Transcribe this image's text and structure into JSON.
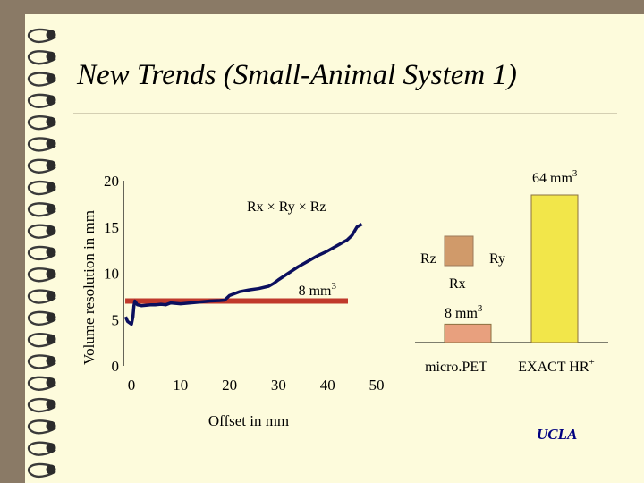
{
  "slide": {
    "title": "New Trends  (Small-Animal System 1)",
    "footer": "UCLA"
  },
  "chart_data": [
    {
      "type": "line",
      "title": "",
      "xlabel": "Offset in mm",
      "ylabel": "Volume resolution in mm",
      "xlim": [
        -2,
        50
      ],
      "ylim": [
        0,
        20
      ],
      "xticks": [
        "0",
        "10",
        "20",
        "30",
        "40",
        "50"
      ],
      "yticks": [
        "0",
        "5",
        "10",
        "15",
        "20"
      ],
      "series": [
        {
          "name": "Rx × Ry × Rz",
          "color": "#0b0f5e",
          "x": [
            -1.2,
            -0.8,
            0,
            0.3,
            0.5,
            0.7,
            1.2,
            2,
            3,
            4,
            5,
            6,
            7,
            8,
            10,
            12,
            14,
            16,
            18,
            19,
            20,
            22,
            24,
            26,
            28,
            29,
            30,
            32,
            34,
            36,
            38,
            40,
            42,
            44,
            45,
            46,
            47
          ],
          "y": [
            5.3,
            4.8,
            4.5,
            5.3,
            6.5,
            7.0,
            6.6,
            6.5,
            6.55,
            6.6,
            6.6,
            6.65,
            6.6,
            6.8,
            6.7,
            6.8,
            6.9,
            7.0,
            7.05,
            7.1,
            7.6,
            8.0,
            8.2,
            8.35,
            8.6,
            8.9,
            9.3,
            10.0,
            10.7,
            11.3,
            11.9,
            12.4,
            13.0,
            13.6,
            14.1,
            15.0,
            15.3
          ]
        },
        {
          "name": "8 mm3",
          "color": "#c0392b",
          "x": [
            -2,
            50
          ],
          "y": [
            7.0,
            7.0
          ]
        }
      ],
      "annotations": {
        "rxryrz": "Rx × Ry × Rz",
        "eight_mm3": "8 mm3"
      }
    },
    {
      "type": "bar",
      "categories": [
        "micro.PET",
        "EXACT HR+"
      ],
      "values": [
        8,
        64
      ],
      "units": "mm3",
      "ylim": [
        0,
        64
      ],
      "colors": [
        "#e8a07e",
        "#f2e64a"
      ],
      "data_labels": [
        "8 mm3",
        "64 mm3"
      ]
    }
  ],
  "voxel_legend": {
    "rz": "Rz",
    "ry": "Ry",
    "rx": "Rx",
    "color": "#d09a6a"
  }
}
